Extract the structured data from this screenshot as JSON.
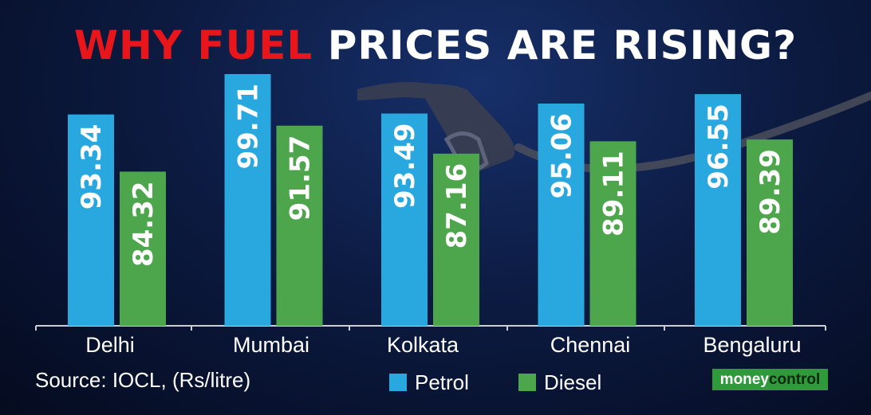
{
  "title_highlight": "WHY FUEL",
  "title_rest": "PRICES ARE RISING?",
  "source": "Source: IOCL, (Rs/litre)",
  "brand": {
    "part1": "money",
    "part2": "control"
  },
  "colors": {
    "petrol": "#29a8e0",
    "diesel": "#4ea64c",
    "title_red": "#e8151b",
    "background": "#0c1b42"
  },
  "chart_data": {
    "type": "bar",
    "categories": [
      "Delhi",
      "Mumbai",
      "Kolkata",
      "Chennai",
      "Bengaluru"
    ],
    "series": [
      {
        "name": "Petrol",
        "values": [
          93.34,
          99.71,
          93.49,
          95.06,
          96.55
        ]
      },
      {
        "name": "Diesel",
        "values": [
          84.32,
          91.57,
          87.16,
          89.11,
          89.39
        ]
      }
    ],
    "legend_position": "bottom",
    "grid": false
  }
}
